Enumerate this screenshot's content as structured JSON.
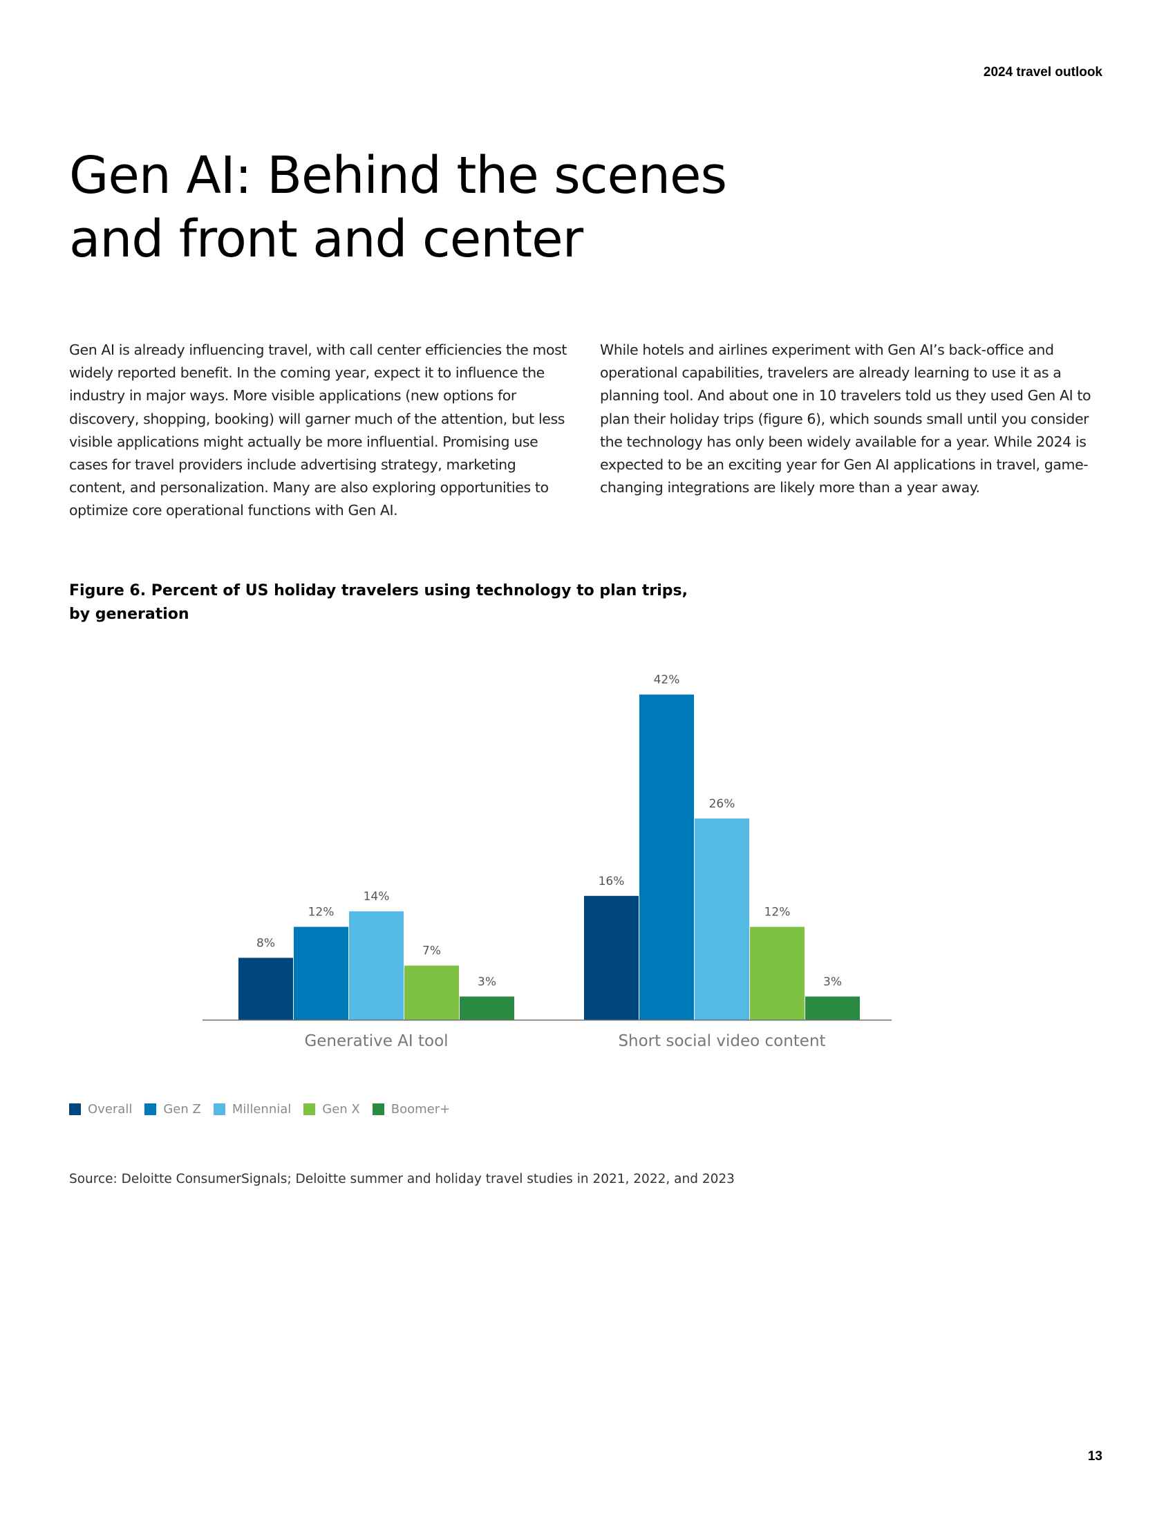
{
  "header": {
    "running_title": "2024 travel outlook"
  },
  "article": {
    "title_line1": "Gen AI: Behind the scenes",
    "title_line2": "and front and center",
    "paragraph_left": "Gen AI is already influencing travel, with call center efficiencies the most widely reported benefit. In the coming year, expect it to influence the industry in major ways. More visible applications (new options for discovery, shopping, booking) will garner much of the attention, but less visible applications might actually be more influential. Promising use cases for travel providers include advertising strategy, marketing content, and personalization. Many are also exploring opportunities to optimize core operational functions with Gen AI.",
    "paragraph_right": "While hotels and airlines experiment with Gen AI’s back-office and operational capabilities, travelers are already learning to use it as a planning tool. And about one in 10 travelers told us they used Gen AI to plan their holiday trips (figure 6), which sounds small until you consider the technology has only been widely available for a year. While 2024 is expected to be an exciting year for Gen AI applications in travel, game-changing integrations are likely more than a year away."
  },
  "figure": {
    "title_line1": "Figure 6. Percent of US holiday travelers using technology to plan trips,",
    "title_line2": "by generation",
    "source": "Source: Deloitte ConsumerSignals; Deloitte summer and holiday travel studies in 2021, 2022, and 2023"
  },
  "chart_data": {
    "type": "bar",
    "title": "Figure 6. Percent of US holiday travelers using technology to plan trips, by generation",
    "categories": [
      "Generative AI tool",
      "Short social video content"
    ],
    "series": [
      {
        "name": "Overall",
        "color": "#00467f",
        "values": [
          8,
          16
        ],
        "labels": [
          "8%",
          "16%"
        ]
      },
      {
        "name": "Gen Z",
        "color": "#0079b9",
        "values": [
          12,
          42
        ],
        "labels": [
          "12%",
          "42%"
        ]
      },
      {
        "name": "Millennial",
        "color": "#55b9e6",
        "values": [
          14,
          26
        ],
        "labels": [
          "14%",
          "26%"
        ]
      },
      {
        "name": "Gen X",
        "color": "#7fc241",
        "values": [
          7,
          12
        ],
        "labels": [
          "7%",
          "12%"
        ]
      },
      {
        "name": "Boomer+",
        "color": "#2a8a42",
        "values": [
          3,
          3
        ],
        "labels": [
          "3%",
          "3%"
        ]
      }
    ],
    "ylim": [
      0,
      45
    ],
    "grid": false,
    "legend": "bottom-left"
  },
  "footer": {
    "page_number": "13"
  }
}
